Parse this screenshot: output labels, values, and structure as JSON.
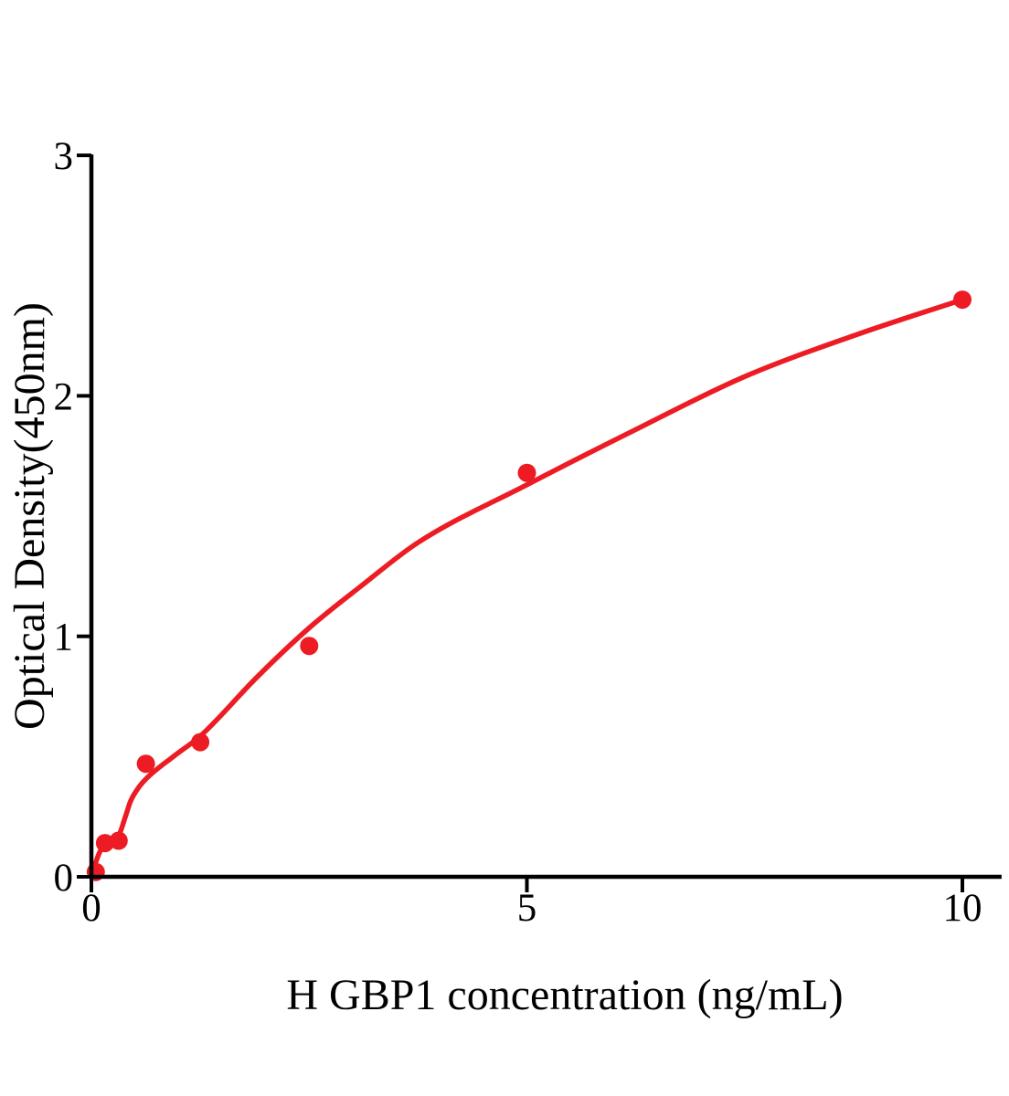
{
  "figure": {
    "background": "#ffffff"
  },
  "chart_data": {
    "type": "scatter",
    "title": "",
    "xlabel": "H GBP1 concentration (ng/mL)",
    "ylabel": "Optical Density(450nm)",
    "xlim": [
      0,
      10.45
    ],
    "ylim": [
      0,
      3
    ],
    "x_ticks": [
      "0",
      "5",
      "10"
    ],
    "x_tick_values": [
      0,
      5,
      10
    ],
    "y_ticks": [
      "0",
      "1",
      "2",
      "3"
    ],
    "y_tick_values": [
      0,
      1,
      2,
      3
    ],
    "grid": false,
    "legend_position": "none",
    "axis_color": "#000000",
    "text_color": "#000000",
    "accent_color": "#ED1C24",
    "series": [
      {
        "name": "standard-points",
        "type": "scatter",
        "marker": "circle",
        "color": "#ED1C24",
        "x": [
          0.05,
          0.156,
          0.313,
          0.625,
          1.25,
          2.5,
          5,
          10
        ],
        "y": [
          0.02,
          0.14,
          0.15,
          0.47,
          0.56,
          0.96,
          1.68,
          2.4
        ]
      },
      {
        "name": "fit-curve",
        "type": "line",
        "color": "#ED1C24",
        "x": [
          0,
          0.05,
          0.105,
          0.156,
          0.23,
          0.313,
          0.39,
          0.45,
          0.55,
          0.65,
          0.94,
          1.25,
          1.9,
          2.5,
          3.1,
          3.75,
          5,
          6.25,
          7.5,
          8.75,
          10
        ],
        "y": [
          0,
          0.06,
          0.11,
          0.135,
          0.15,
          0.17,
          0.25,
          0.315,
          0.375,
          0.415,
          0.5,
          0.585,
          0.83,
          1.035,
          1.21,
          1.39,
          1.63,
          1.86,
          2.08,
          2.25,
          2.4
        ]
      }
    ]
  }
}
